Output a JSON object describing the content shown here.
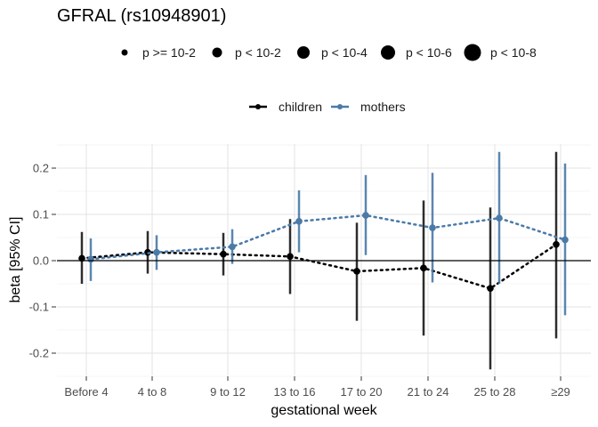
{
  "chart_data": {
    "type": "line",
    "title": "GFRAL (rs10948901)",
    "xlabel": "gestational week",
    "ylabel": "beta [95% CI]",
    "categories": [
      "Before 4",
      "4 to 8",
      "9 to 12",
      "13 to 16",
      "17 to 20",
      "21 to 24",
      "25 to 28",
      "≥29"
    ],
    "ylim": [
      -0.25,
      0.25
    ],
    "yticks": [
      -0.2,
      -0.1,
      0.0,
      0.1,
      0.2
    ],
    "ytick_labels": [
      "-0.2",
      "-0.1",
      "0.0",
      "0.1",
      "0.2"
    ],
    "grid": true,
    "size_legend": {
      "position": "top",
      "labels": [
        "p >= 10-2",
        "p < 10-2",
        "p < 10-4",
        "p < 10-6",
        "p < 10-8"
      ]
    },
    "color_legend": {
      "position": "top"
    },
    "series": [
      {
        "name": "children",
        "color": "#000000",
        "beta": [
          0.005,
          0.018,
          0.014,
          0.009,
          -0.023,
          -0.016,
          -0.06,
          0.035
        ],
        "ci_low": [
          -0.05,
          -0.028,
          -0.032,
          -0.072,
          -0.13,
          -0.162,
          -0.235,
          -0.168
        ],
        "ci_high": [
          0.062,
          0.064,
          0.06,
          0.09,
          0.082,
          0.13,
          0.115,
          0.235
        ]
      },
      {
        "name": "mothers",
        "color": "#4a7aa8",
        "beta": [
          0.003,
          0.018,
          0.03,
          0.085,
          0.098,
          0.071,
          0.092,
          0.045
        ],
        "ci_low": [
          -0.044,
          -0.02,
          -0.007,
          0.018,
          0.012,
          -0.047,
          -0.05,
          -0.118
        ],
        "ci_high": [
          0.048,
          0.055,
          0.068,
          0.152,
          0.185,
          0.19,
          0.235,
          0.21
        ]
      }
    ]
  }
}
